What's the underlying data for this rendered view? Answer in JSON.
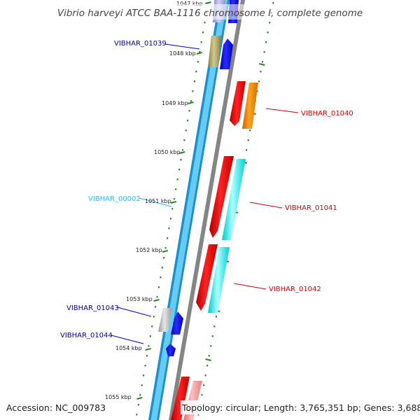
{
  "title": "Vibrio harveyi ATCC BAA-1116 chromosome I, complete genome",
  "accession": "Accession: NC_009783",
  "topology": "Topology: circular; Length: 3,765,351 bp; Genes: 3,688",
  "colors": {
    "background": "#ffffff",
    "backbone_outer": "#1e8fc8",
    "backbone_inner": "#66ccf5",
    "backbone_edge": "#858585",
    "tick": "#1f8a1f",
    "gene_forward": "#0000dd",
    "gene_forward_label": "#00009a",
    "gene_reverse": "#ee0000",
    "gene_reverse_label": "#cc0000",
    "rna": "#00e6e6",
    "rna_label": "#33bbdd",
    "pseudo": "#a09a55",
    "misc": "#aaaaaa",
    "orange": "#ff8800"
  },
  "kbp_labels": [
    "1047 kbp",
    "1048 kbp",
    "1049 kbp",
    "1050 kbp",
    "1051 kbp",
    "1052 kbp",
    "1053 kbp",
    "1054 kbp",
    "1055 kbp"
  ],
  "gene_labels": {
    "left": [
      "VIBHAR_01039",
      "VIBHAR_00002",
      "VIBHAR_01043",
      "VIBHAR_01044"
    ],
    "right": [
      "VIBHAR_01040",
      "VIBHAR_01041",
      "VIBHAR_01042"
    ]
  }
}
